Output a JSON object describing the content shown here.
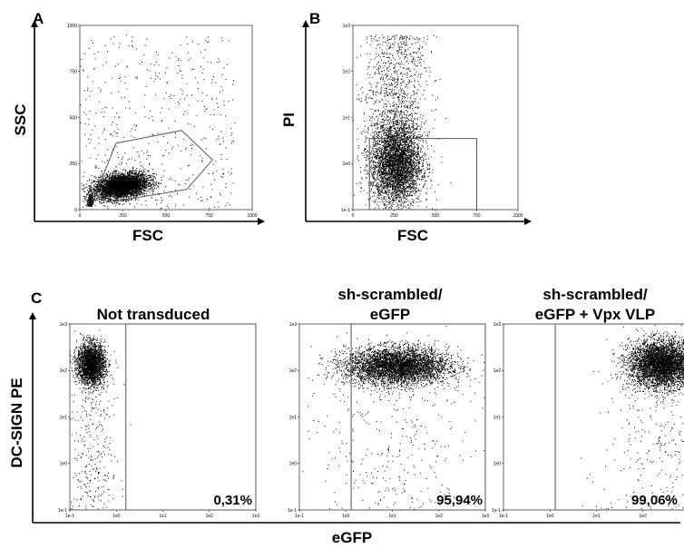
{
  "chart_data": [
    {
      "panel": "A",
      "type": "scatter",
      "xlabel": "FSC",
      "ylabel": "SSC",
      "xlim": [
        0,
        1000
      ],
      "ylim": [
        0,
        1000
      ],
      "x_ticks": [
        "0",
        "250",
        "500",
        "750",
        "1000"
      ],
      "y_ticks": [
        "0",
        "250",
        "500",
        "750",
        "1000"
      ],
      "gate": {
        "shape": "polygon",
        "vertices": [
          [
            90,
            80
          ],
          [
            210,
            360
          ],
          [
            590,
            430
          ],
          [
            770,
            270
          ],
          [
            620,
            110
          ],
          [
            170,
            40
          ]
        ]
      },
      "population": {
        "x_center": 240,
        "y_center": 130,
        "x_spread": 140,
        "y_spread": 55,
        "points": 4200
      }
    },
    {
      "panel": "B",
      "type": "scatter",
      "xlabel": "FSC",
      "ylabel": "PI",
      "x_scale": "linear",
      "y_scale": "log",
      "xlim": [
        0,
        1000
      ],
      "ylim": [
        0.1,
        1000
      ],
      "x_ticks": [
        "0",
        "250",
        "500",
        "750",
        "1000"
      ],
      "y_ticks": [
        "1e-1",
        "1e0",
        "1e1",
        "1e2",
        "1e3"
      ],
      "gate": {
        "shape": "rectangle",
        "x": [
          100,
          750
        ],
        "y": [
          0.1,
          3.5
        ]
      },
      "population": {
        "x_center": 260,
        "y_log_center": 0.0,
        "x_spread": 110,
        "y_log_spread": 0.45,
        "points": 4000
      }
    },
    {
      "panel": "C",
      "type": "scatter",
      "xlabel": "eGFP",
      "ylabel": "DC-SIGN PE",
      "x_scale": "log",
      "y_scale": "log",
      "xlim": [
        0.1,
        1000
      ],
      "ylim": [
        0.1,
        1000
      ],
      "x_ticks": [
        "1e-1",
        "1e0",
        "1e1",
        "1e2",
        "1e3"
      ],
      "y_ticks": [
        "1e-1",
        "1e0",
        "1e1",
        "1e2",
        "1e3"
      ],
      "plots": [
        {
          "title_lines": [
            "Not transduced"
          ],
          "gate_x_min": 1.6,
          "gate_percent": "0,31%",
          "population": {
            "x_log_center": -0.55,
            "y_log_center": 2.15,
            "x_log_spread": 0.15,
            "y_log_spread": 0.22,
            "points": 2600
          }
        },
        {
          "title_lines": [
            "sh-scrambled/",
            "eGFP"
          ],
          "gate_x_min": 1.3,
          "gate_percent": "95,94%",
          "population": {
            "x_log_center": 1.1,
            "y_log_center": 2.1,
            "x_log_spread": 0.55,
            "y_log_spread": 0.2,
            "points": 4500
          }
        },
        {
          "title_lines": [
            "sh-scrambled/",
            "eGFP + Vpx VLP"
          ],
          "gate_x_min": 1.3,
          "gate_percent": "99,06%",
          "population": {
            "x_log_center": 2.4,
            "y_log_center": 2.15,
            "x_log_spread": 0.35,
            "y_log_spread": 0.25,
            "points": 4500
          }
        }
      ]
    }
  ]
}
